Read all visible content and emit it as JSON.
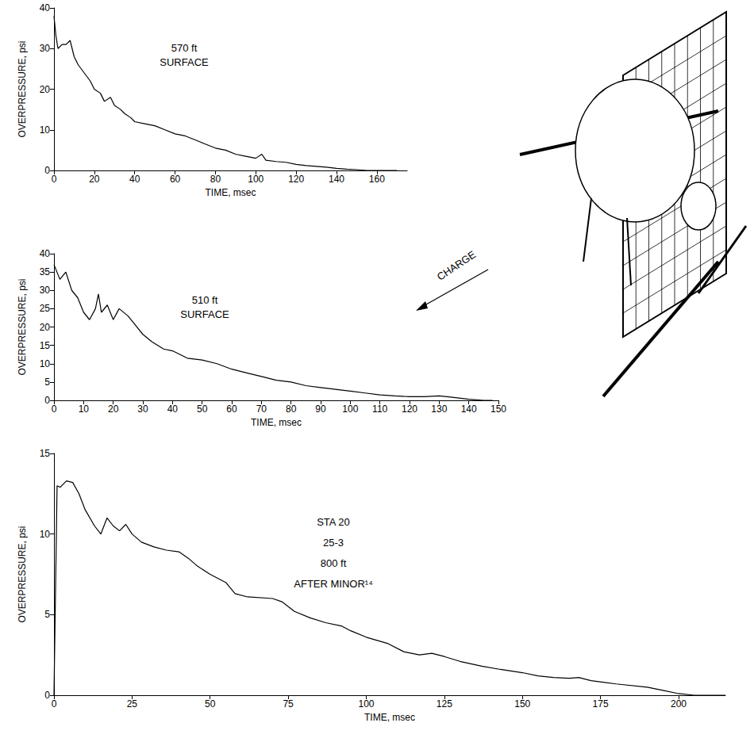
{
  "chart_data": [
    {
      "type": "line",
      "annotations": [
        "570 ft",
        "SURFACE"
      ],
      "xlabel": "TIME, msec",
      "ylabel": "OVERPRESSURE, psi",
      "x": [
        0,
        1,
        2,
        4,
        6,
        8,
        10,
        12,
        15,
        18,
        20,
        23,
        25,
        28,
        30,
        33,
        35,
        38,
        40,
        45,
        50,
        55,
        60,
        65,
        70,
        75,
        80,
        85,
        90,
        95,
        100,
        103,
        105,
        110,
        115,
        120,
        125,
        130,
        135,
        140,
        145,
        150,
        155,
        160,
        165,
        170
      ],
      "values": [
        38,
        33,
        30,
        31,
        31,
        32,
        28,
        26,
        24,
        22,
        20,
        19,
        17,
        18,
        16,
        15,
        14,
        13,
        12,
        11.5,
        11,
        10,
        9,
        8.5,
        7.5,
        6.5,
        5.5,
        5,
        4,
        3.5,
        3,
        4,
        2.5,
        2.2,
        2,
        1.5,
        1.2,
        1,
        0.8,
        0.5,
        0.3,
        0.2,
        0,
        0,
        0,
        0
      ],
      "color": "#000000",
      "xlim": [
        0,
        175
      ],
      "xticks": [
        0,
        20,
        40,
        60,
        80,
        100,
        120,
        140,
        160
      ],
      "ylim": [
        0,
        40
      ],
      "yticks": [
        0,
        10,
        20,
        30,
        40
      ],
      "grid": false
    },
    {
      "type": "line",
      "annotations": [
        "510 ft",
        "SURFACE",
        "CHARGE"
      ],
      "xlabel": "TIME, msec",
      "ylabel": "OVERPRESSURE, psi",
      "x": [
        0,
        2,
        4,
        6,
        8,
        10,
        12,
        14,
        15,
        16,
        18,
        20,
        22,
        25,
        27,
        30,
        33,
        37,
        40,
        45,
        50,
        55,
        60,
        65,
        70,
        75,
        80,
        85,
        90,
        95,
        100,
        105,
        110,
        115,
        120,
        125,
        130,
        135,
        140,
        145,
        148
      ],
      "values": [
        37,
        33,
        35,
        30,
        28,
        24,
        22,
        25,
        29,
        24,
        26,
        22,
        25,
        23,
        21,
        18,
        16,
        14,
        13.5,
        11.5,
        11,
        10,
        8.5,
        7.5,
        6.5,
        5.5,
        5,
        4,
        3.5,
        3,
        2.5,
        2,
        1.5,
        1.2,
        1,
        1,
        1.2,
        0.8,
        0.3,
        0,
        0
      ],
      "color": "#000000",
      "xlim": [
        0,
        150
      ],
      "xticks": [
        0,
        10,
        20,
        30,
        40,
        50,
        60,
        70,
        80,
        90,
        100,
        110,
        120,
        130,
        140,
        150
      ],
      "ylim": [
        0,
        40
      ],
      "yticks": [
        0,
        5,
        10,
        15,
        20,
        25,
        30,
        35,
        40
      ],
      "grid": false
    },
    {
      "type": "line",
      "annotations": [
        "STA 20",
        "25-3",
        "800 ft",
        "AFTER MINOR¹⁴"
      ],
      "xlabel": "TIME, msec",
      "ylabel": "OVERPRESSURE, psi",
      "x": [
        0,
        1,
        2,
        4,
        6,
        8,
        10,
        13,
        15,
        17,
        19,
        21,
        23,
        25,
        28,
        32,
        36,
        40,
        43,
        46,
        50,
        55,
        58,
        62,
        70,
        73,
        77,
        82,
        87,
        92,
        95,
        100,
        107,
        112,
        117,
        121,
        125,
        130,
        137,
        143,
        150,
        155,
        160,
        165,
        168,
        172,
        180,
        190,
        195,
        200,
        205,
        215
      ],
      "values": [
        0,
        13,
        12.9,
        13.3,
        13.2,
        12.5,
        11.5,
        10.5,
        10,
        11,
        10.5,
        10.2,
        10.6,
        10,
        9.5,
        9.2,
        9,
        8.9,
        8.5,
        8,
        7.5,
        7,
        6.3,
        6.1,
        6,
        5.8,
        5.2,
        4.8,
        4.5,
        4.3,
        4,
        3.6,
        3.2,
        2.7,
        2.5,
        2.6,
        2.4,
        2.1,
        1.8,
        1.6,
        1.4,
        1.2,
        1.1,
        1.05,
        1.1,
        0.9,
        0.7,
        0.5,
        0.3,
        0.1,
        0,
        0
      ],
      "color": "#000000",
      "xlim": [
        0,
        215
      ],
      "xticks": [
        0,
        25,
        50,
        75,
        100,
        125,
        150,
        175,
        200
      ],
      "ylim": [
        0,
        15
      ],
      "yticks": [
        0,
        5,
        10,
        15
      ],
      "grid": false
    }
  ]
}
